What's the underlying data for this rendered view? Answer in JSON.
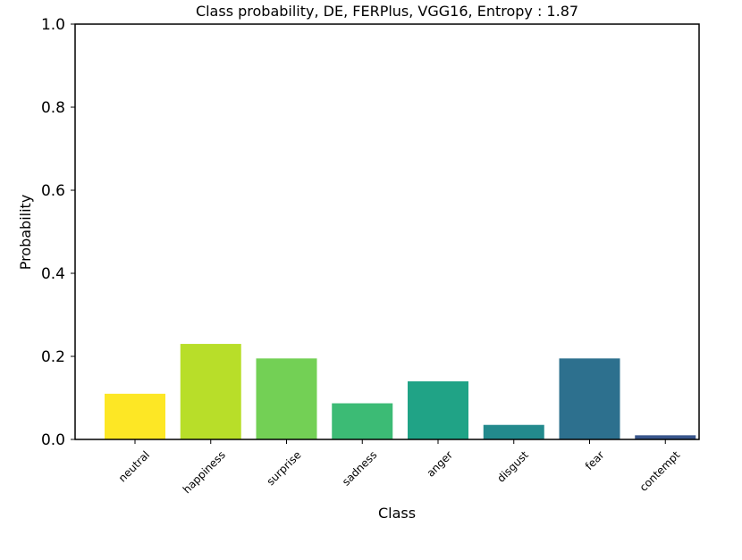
{
  "chart_data": {
    "type": "bar",
    "title": "Class probability, DE, FERPlus, VGG16, Entropy : 1.87",
    "xlabel": "Class",
    "ylabel": "Probability",
    "categories": [
      "neutral",
      "happiness",
      "surprise",
      "sadness",
      "anger",
      "disgust",
      "fear",
      "contempt"
    ],
    "values": [
      0.11,
      0.23,
      0.195,
      0.087,
      0.14,
      0.035,
      0.195,
      0.01
    ],
    "colors": [
      "#fde725",
      "#b8de29",
      "#73d055",
      "#3cbb75",
      "#20a386",
      "#238a8d",
      "#2d708e",
      "#39568c"
    ],
    "ylim": [
      0,
      1.0
    ],
    "yticks": [
      "0.0",
      "0.2",
      "0.4",
      "0.6",
      "0.8",
      "1.0"
    ],
    "ytick_values": [
      0,
      0.2,
      0.4,
      0.6,
      0.8,
      1.0
    ],
    "grid": false,
    "legend": "none"
  }
}
